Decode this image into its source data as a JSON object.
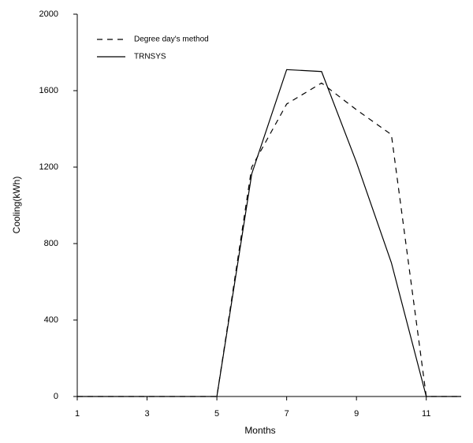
{
  "chart_data": {
    "type": "line",
    "xlabel": "Months",
    "ylabel": "Cooling(kWh)",
    "x": [
      1,
      2,
      3,
      4,
      5,
      6,
      7,
      8,
      9,
      10,
      11,
      12
    ],
    "series": [
      {
        "name": "Degree day's method",
        "color": "#000000",
        "style": "dashed",
        "values": [
          0,
          0,
          0,
          0,
          0,
          1200,
          1530,
          1640,
          1500,
          1370,
          0,
          0
        ]
      },
      {
        "name": "TRNSYS",
        "color": "#000000",
        "style": "solid",
        "values": [
          0,
          0,
          0,
          0,
          0,
          1165,
          1710,
          1700,
          1225,
          700,
          0,
          0
        ]
      }
    ],
    "xlim": [
      1,
      12
    ],
    "xticks": [
      1,
      3,
      5,
      7,
      9,
      11
    ],
    "ylim": [
      0,
      2000
    ],
    "yticks": [
      0,
      400,
      800,
      1200,
      1600,
      2000
    ],
    "grid": false,
    "legend": "upper-left"
  }
}
